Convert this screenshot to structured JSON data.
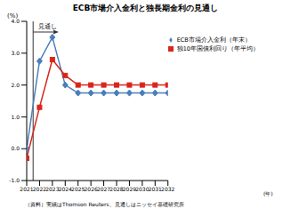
{
  "chart_data": {
    "type": "line",
    "title": "ECB市場介入金利と独長期金利の見通し",
    "y_label": "(%)",
    "x_label": "(年)",
    "source": "（資料）実績はThomson Reuters、見通しはニッセイ基礎研究所",
    "x": [
      2021,
      2022,
      2023,
      2024,
      2025,
      2026,
      2027,
      2028,
      2029,
      2030,
      2031,
      2032
    ],
    "xlim": [
      2021,
      2032
    ],
    "xticks": [
      2021,
      2022,
      2023,
      2024,
      2025,
      2026,
      2027,
      2028,
      2029,
      2030,
      2031,
      2032
    ],
    "ylim": [
      -1,
      4
    ],
    "yticks": [
      {
        "value": -1,
        "label": "-1.0"
      },
      {
        "value": 0,
        "label": "0.0"
      },
      {
        "value": 1,
        "label": "1.0"
      },
      {
        "value": 2,
        "label": "2.0"
      },
      {
        "value": 3,
        "label": "3.0"
      },
      {
        "value": 4,
        "label": "4.0"
      }
    ],
    "grid": false,
    "legend": "upper right",
    "annotations": [
      {
        "text": "見通し",
        "x": 2021.5
      }
    ],
    "series": [
      {
        "name": "ECB市場介入金利（年末）",
        "color": "#4a7ebb",
        "marker": "diamond",
        "values": [
          0.0,
          2.75,
          3.5,
          2.0,
          1.75,
          1.75,
          1.75,
          1.75,
          1.75,
          1.75,
          1.75,
          1.75
        ]
      },
      {
        "name": "独10年国債利回り（年平均）",
        "color": "#d9251d",
        "marker": "square",
        "values": [
          -0.3,
          1.3,
          2.8,
          2.3,
          2.0,
          2.0,
          2.0,
          2.0,
          2.0,
          2.0,
          2.0,
          2.0
        ]
      }
    ]
  }
}
